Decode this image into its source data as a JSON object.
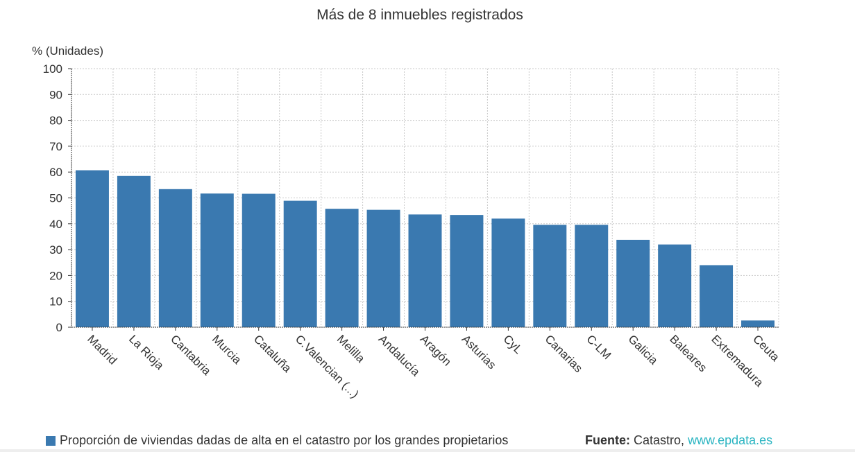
{
  "chart_data": {
    "type": "bar",
    "title": "Más de 8 inmuebles registrados",
    "ylabel": "% (Unidades)",
    "xlabel": "",
    "ylim": [
      0,
      100
    ],
    "yticks": [
      0,
      10,
      20,
      30,
      40,
      50,
      60,
      70,
      80,
      90,
      100
    ],
    "grid": true,
    "categories": [
      "Madrid",
      "La Rioja",
      "Cantabria",
      "Murcia",
      "Cataluña",
      "C.Valencian (...)",
      "Melilla",
      "Andalucía",
      "Aragón",
      "Asturias",
      "CyL",
      "Canarias",
      "C-LM",
      "Galicia",
      "Baleares",
      "Extremadura",
      "Ceuta"
    ],
    "series": [
      {
        "name": "Proporción de viviendas dadas de alta en el catastro por los grandes propietarios",
        "color": "#3a79b0",
        "values": [
          60.7,
          58.5,
          53.4,
          51.7,
          51.6,
          48.9,
          45.8,
          45.4,
          43.6,
          43.4,
          42.0,
          39.6,
          39.6,
          33.8,
          32.0,
          24.0,
          2.6
        ]
      }
    ],
    "legend_position": "bottom-left"
  },
  "source": {
    "label": "Fuente:",
    "text": "Catastro,",
    "link": "www.epdata.es"
  }
}
